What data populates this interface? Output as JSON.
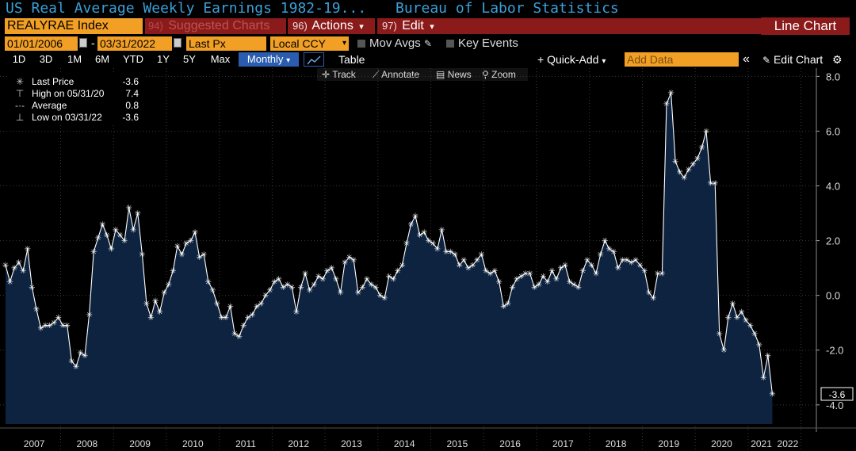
{
  "header": {
    "title": "US Real Average Weekly Earnings 1982-19...",
    "source": "Bureau of Labor Statistics"
  },
  "toolbar": {
    "ticker": "REALYRAE Index",
    "suggested_num": "94)",
    "suggested_label": "Suggested Charts",
    "actions_num": "96)",
    "actions_label": "Actions",
    "edit_num": "97)",
    "edit_label": "Edit",
    "chart_type": "Line Chart",
    "start_date": "01/01/2006",
    "end_date": "03/31/2022",
    "field": "Last Px",
    "currency": "Local CCY",
    "mov_avgs": "Mov Avgs",
    "key_events": "Key Events",
    "ranges": [
      "1D",
      "3D",
      "1M",
      "6M",
      "YTD",
      "1Y",
      "5Y",
      "Max"
    ],
    "periodicity": "Monthly",
    "table_label": "Table",
    "quick_add": "Quick-Add",
    "add_data_placeholder": "Add Data",
    "edit_chart": "Edit Chart",
    "tools": [
      "Track",
      "Annotate",
      "News",
      "Zoom"
    ],
    "dropdown_glyph": "▾",
    "collapse_glyph": "«"
  },
  "legend": [
    {
      "label": "Last Price",
      "value": "-3.6"
    },
    {
      "label": "High on 05/31/20",
      "value": "7.4"
    },
    {
      "label": "Average",
      "value": "0.8"
    },
    {
      "label": "Low on 03/31/22",
      "value": "-3.6"
    }
  ],
  "colors": {
    "accent_orange": "#f29f25",
    "bar_red": "#8b1a1a",
    "title_blue": "#3aa0d8",
    "area_fill": "#0d2340",
    "line": "#ffffff",
    "grid": "#3a3a3a",
    "selected_blue": "#2a5db0"
  },
  "chart_data": {
    "type": "area",
    "title": "US Real Average Weekly Earnings 1982-19...",
    "x_start": "2006-12",
    "x_end": "2022-03",
    "ylim": [
      -4.7,
      8.3
    ],
    "y_ticks": [
      "8.0",
      "6.0",
      "4.0",
      "2.0",
      "0.0",
      "-2.0",
      "-4.0"
    ],
    "x_tick_labels": [
      "2007",
      "2008",
      "2009",
      "2010",
      "2011",
      "2012",
      "2013",
      "2014",
      "2015",
      "2016",
      "2017",
      "2018",
      "2019",
      "2020",
      "2021",
      "2022"
    ],
    "last_value_label": "-3.6",
    "grid": true,
    "values": [
      1.1,
      0.5,
      1.0,
      1.2,
      0.9,
      1.7,
      0.3,
      -0.5,
      -1.2,
      -1.1,
      -1.1,
      -1.0,
      -0.8,
      -1.1,
      -1.1,
      -2.4,
      -2.6,
      -2.1,
      -2.2,
      -0.7,
      1.6,
      2.1,
      2.6,
      2.2,
      1.7,
      2.4,
      2.2,
      2.0,
      3.2,
      2.4,
      3.0,
      1.5,
      -0.3,
      -0.8,
      -0.2,
      -0.6,
      0.1,
      0.4,
      0.9,
      1.8,
      1.5,
      1.9,
      2.0,
      2.3,
      1.4,
      1.5,
      0.5,
      0.2,
      -0.3,
      -0.8,
      -0.8,
      -0.4,
      -1.4,
      -1.5,
      -1.1,
      -0.8,
      -0.7,
      -0.4,
      -0.3,
      0.0,
      0.2,
      0.5,
      0.6,
      0.3,
      0.4,
      0.3,
      -0.6,
      0.3,
      0.8,
      0.2,
      0.4,
      0.7,
      0.6,
      0.9,
      1.0,
      0.6,
      0.1,
      1.2,
      1.4,
      1.3,
      0.1,
      0.3,
      0.6,
      0.4,
      0.3,
      0.0,
      -0.1,
      0.7,
      0.6,
      0.9,
      1.1,
      1.9,
      2.6,
      2.9,
      2.2,
      2.3,
      2.0,
      1.9,
      1.7,
      2.4,
      1.6,
      1.6,
      1.5,
      1.1,
      1.3,
      1.0,
      1.1,
      1.3,
      1.5,
      0.9,
      0.8,
      0.9,
      0.5,
      -0.4,
      -0.3,
      0.3,
      0.6,
      0.7,
      0.8,
      0.8,
      0.3,
      0.4,
      0.7,
      0.5,
      0.9,
      0.6,
      1.0,
      1.1,
      0.5,
      0.4,
      0.3,
      0.9,
      1.3,
      1.1,
      0.8,
      1.5,
      2.0,
      1.7,
      1.6,
      1.0,
      1.3,
      1.3,
      1.2,
      1.3,
      1.1,
      0.9,
      0.1,
      -0.1,
      0.8,
      0.8,
      7.0,
      7.4,
      4.9,
      4.5,
      4.3,
      4.6,
      4.8,
      5.0,
      5.4,
      6.0,
      4.1,
      4.1,
      -1.4,
      -2.0,
      -0.8,
      -0.3,
      -0.8,
      -0.6,
      -0.9,
      -1.1,
      -1.4,
      -1.8,
      -3.0,
      -2.2,
      -3.6
    ]
  }
}
